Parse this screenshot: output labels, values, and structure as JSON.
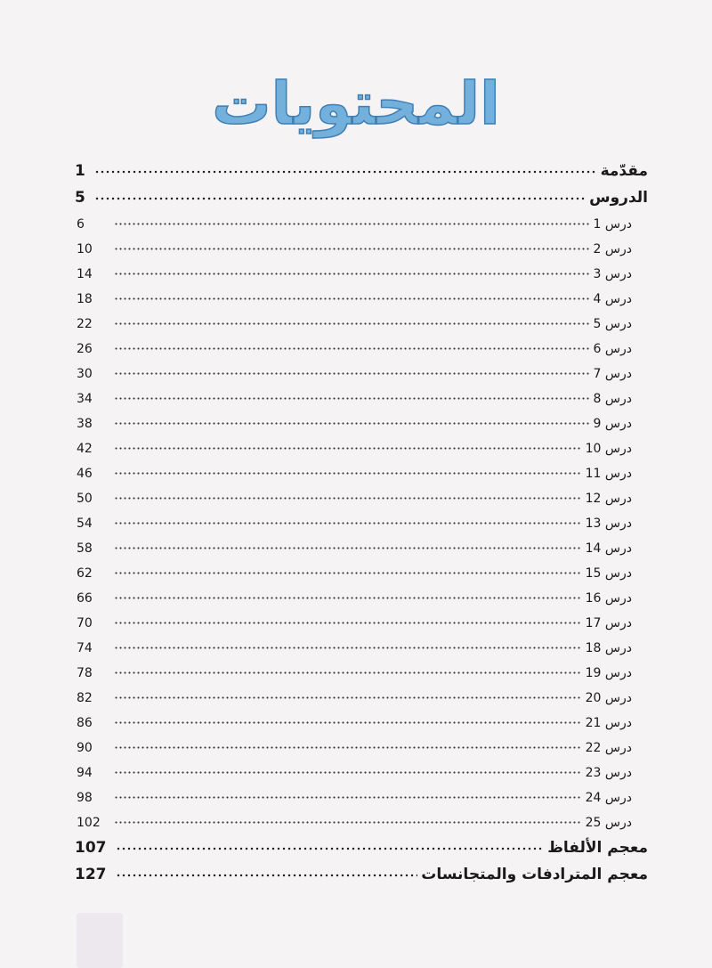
{
  "title": "المحتويات",
  "entries_top": [
    {
      "label": "مقدّمة",
      "page": "1"
    },
    {
      "label": "الدروس",
      "page": "5"
    }
  ],
  "lessons": [
    {
      "label": "درس 1",
      "page": "6"
    },
    {
      "label": "درس 2",
      "page": "10"
    },
    {
      "label": "درس 3",
      "page": "14"
    },
    {
      "label": "درس 4",
      "page": "18"
    },
    {
      "label": "درس 5",
      "page": "22"
    },
    {
      "label": "درس 6",
      "page": "26"
    },
    {
      "label": "درس 7",
      "page": "30"
    },
    {
      "label": "درس 8",
      "page": "34"
    },
    {
      "label": "درس 9",
      "page": "38"
    },
    {
      "label": "درس 10",
      "page": "42"
    },
    {
      "label": "درس 11",
      "page": "46"
    },
    {
      "label": "درس 12",
      "page": "50"
    },
    {
      "label": "درس 13",
      "page": "54"
    },
    {
      "label": "درس 14",
      "page": "58"
    },
    {
      "label": "درس 15",
      "page": "62"
    },
    {
      "label": "درس 16",
      "page": "66"
    },
    {
      "label": "درس 17",
      "page": "70"
    },
    {
      "label": "درس 18",
      "page": "74"
    },
    {
      "label": "درس 19",
      "page": "78"
    },
    {
      "label": "درس 20",
      "page": "82"
    },
    {
      "label": "درس 21",
      "page": "86"
    },
    {
      "label": "درس 22",
      "page": "90"
    },
    {
      "label": "درس 23",
      "page": "94"
    },
    {
      "label": "درس 24",
      "page": "98"
    },
    {
      "label": "درس 25",
      "page": "102"
    }
  ],
  "entries_bottom": [
    {
      "label": "معجم الألفاظ",
      "page": "107"
    },
    {
      "label": "معجم  المترادفات والمتجانسات",
      "page": "127"
    }
  ]
}
